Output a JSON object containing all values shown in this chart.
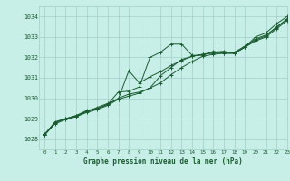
{
  "title": "Graphe pression niveau de la mer (hPa)",
  "bg_color": "#c8eee8",
  "plot_bg_color": "#c8eee8",
  "grid_color": "#a0cfc8",
  "line_color": "#1a5c30",
  "marker_color": "#1a5c30",
  "xlabel_color": "#1a5c30",
  "tick_color": "#1a5c30",
  "xlim": [
    -0.5,
    23
  ],
  "ylim": [
    1027.5,
    1034.5
  ],
  "xticks": [
    0,
    1,
    2,
    3,
    4,
    5,
    6,
    7,
    8,
    9,
    10,
    11,
    12,
    13,
    14,
    15,
    16,
    17,
    18,
    19,
    20,
    21,
    22,
    23
  ],
  "yticks": [
    1028,
    1029,
    1030,
    1031,
    1032,
    1033,
    1034
  ],
  "series": [
    [
      1028.2,
      1028.85,
      1029.0,
      1029.15,
      1029.4,
      1029.5,
      1029.7,
      1030.3,
      1030.35,
      1030.55,
      1032.0,
      1032.25,
      1032.65,
      1032.65,
      1032.1,
      1032.1,
      1032.3,
      1032.2,
      1032.2,
      1032.5,
      1033.0,
      1033.2,
      1033.65,
      1034.0
    ],
    [
      1028.2,
      1028.8,
      1029.0,
      1029.1,
      1029.35,
      1029.5,
      1029.7,
      1030.0,
      1030.2,
      1030.3,
      1030.5,
      1031.1,
      1031.5,
      1031.9,
      1032.05,
      1032.15,
      1032.25,
      1032.3,
      1032.2,
      1032.5,
      1032.85,
      1033.05,
      1033.5,
      1033.85
    ],
    [
      1028.2,
      1028.75,
      1028.95,
      1029.1,
      1029.3,
      1029.45,
      1029.65,
      1029.95,
      1030.1,
      1030.25,
      1030.5,
      1030.75,
      1031.15,
      1031.5,
      1031.8,
      1032.05,
      1032.15,
      1032.2,
      1032.2,
      1032.5,
      1032.8,
      1033.0,
      1033.4,
      1033.8
    ],
    [
      1028.25,
      1028.8,
      1029.0,
      1029.15,
      1029.35,
      1029.55,
      1029.75,
      1029.95,
      1031.35,
      1030.75,
      1031.05,
      1031.3,
      1031.6,
      1031.85,
      1032.05,
      1032.15,
      1032.2,
      1032.25,
      1032.25,
      1032.55,
      1032.9,
      1033.1,
      1033.45,
      1033.9
    ]
  ]
}
